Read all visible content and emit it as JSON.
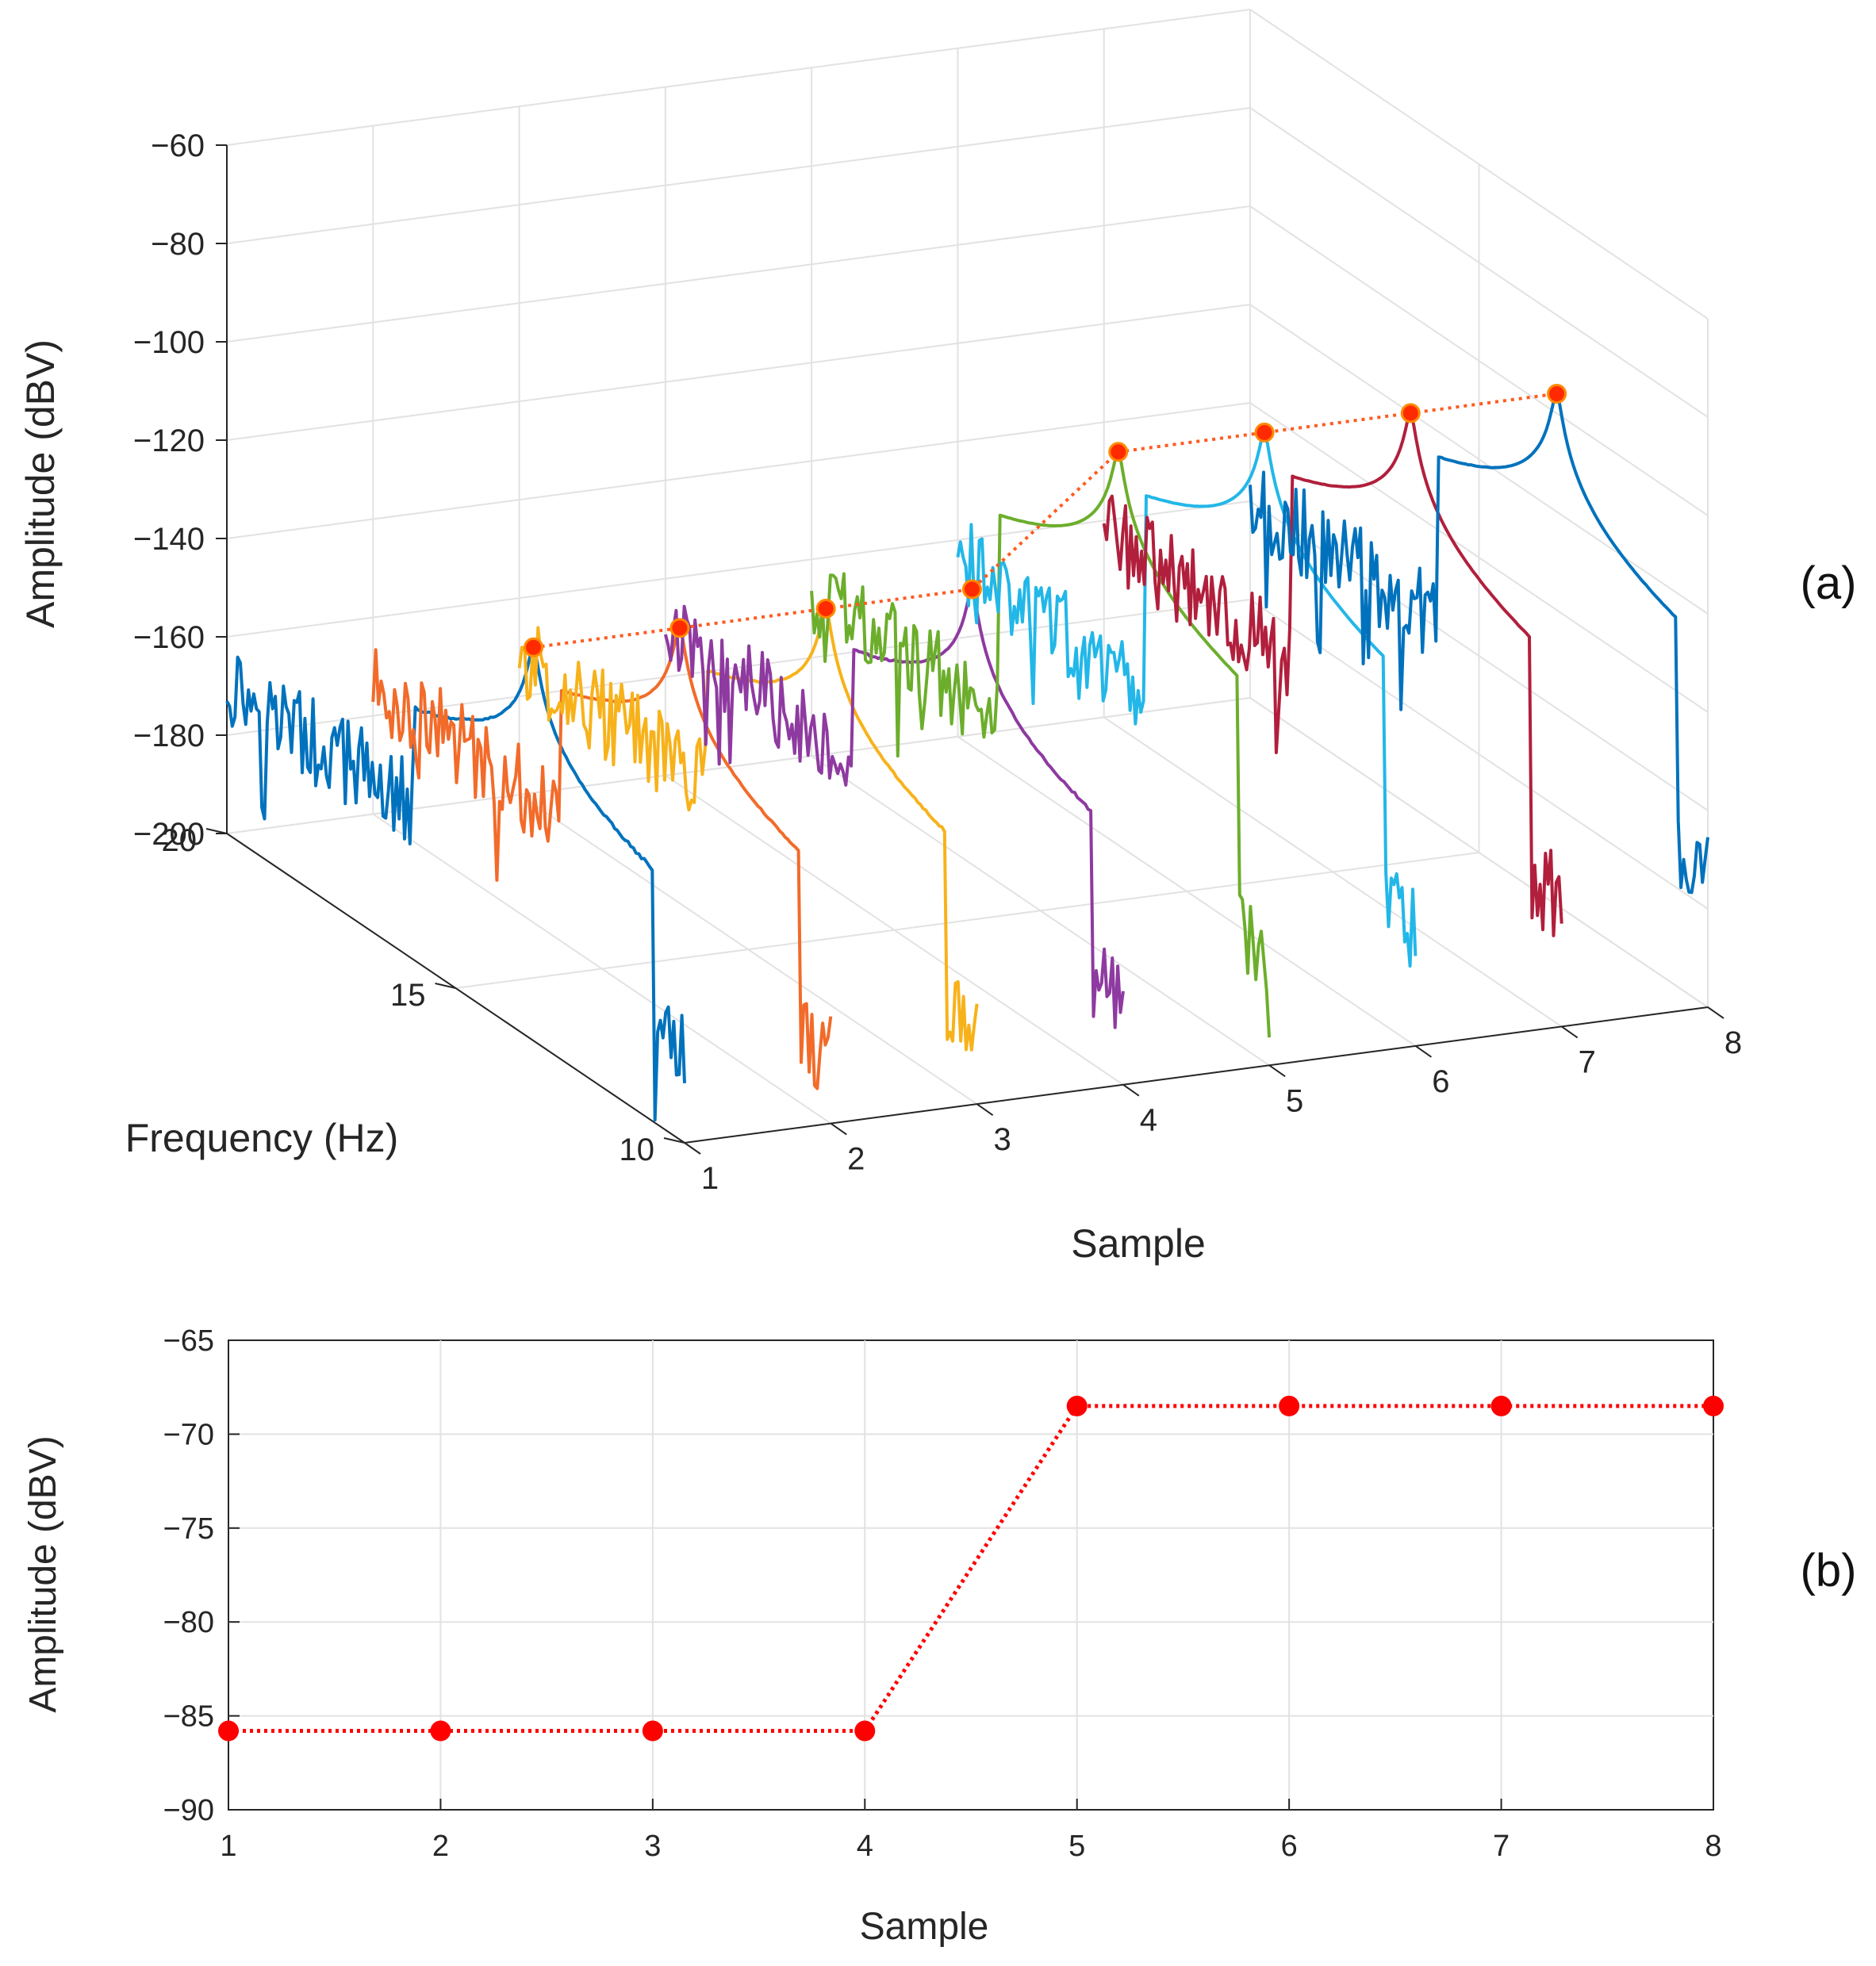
{
  "chart_data": [
    {
      "panel": "a",
      "type": "line",
      "panel_label": "(a)",
      "title": "",
      "xlabel": "Sample",
      "ylabel": "Frequency (Hz)",
      "zlabel": "Amplitude (dBV)",
      "x_ticks": [
        1,
        2,
        3,
        4,
        5,
        6,
        7,
        8
      ],
      "x_tick_labels": [
        "1",
        "2",
        "3",
        "4",
        "5",
        "6",
        "7",
        "8"
      ],
      "y_ticks": [
        10,
        15,
        20
      ],
      "y_tick_labels": [
        "10",
        "15",
        "20"
      ],
      "z_ticks": [
        -200,
        -180,
        -160,
        -140,
        -120,
        -100,
        -80,
        -60
      ],
      "z_tick_labels": [
        "−200",
        "−180",
        "−160",
        "−140",
        "−120",
        "−100",
        "−80",
        "−60"
      ],
      "xlim": [
        1,
        8
      ],
      "ylim": [
        10,
        20
      ],
      "zlim": [
        -200,
        -60
      ],
      "grid": true,
      "peak_frequency_hz": 13.3,
      "series": [
        {
          "name": "Sample 1",
          "color": "#0072BD",
          "peak_dbv": -120,
          "noise_floor_dbv": -175
        },
        {
          "name": "Sample 2",
          "color": "#F26B2A",
          "peak_dbv": -120,
          "noise_floor_dbv": -180
        },
        {
          "name": "Sample 3",
          "color": "#F7B21B",
          "peak_dbv": -120,
          "noise_floor_dbv": -178
        },
        {
          "name": "Sample 4",
          "color": "#8E3AA0",
          "peak_dbv": -120,
          "noise_floor_dbv": -176
        },
        {
          "name": "Sample 5",
          "color": "#6CAE2C",
          "peak_dbv": -96,
          "noise_floor_dbv": -172
        },
        {
          "name": "Sample 6",
          "color": "#22B7E8",
          "peak_dbv": -96,
          "noise_floor_dbv": -170
        },
        {
          "name": "Sample 7",
          "color": "#B11F3C",
          "peak_dbv": -96,
          "noise_floor_dbv": -168
        },
        {
          "name": "Sample 8",
          "color": "#0072BD",
          "peak_dbv": -96,
          "noise_floor_dbv": -165
        }
      ],
      "peak_trace": {
        "color": "#FF5A1F",
        "marker_color": "#FF2A00",
        "style": "dotted",
        "values_dbv": [
          -120,
          -120,
          -120,
          -120,
          -96,
          -96,
          -96,
          -96
        ]
      }
    },
    {
      "panel": "b",
      "type": "line",
      "panel_label": "(b)",
      "title": "",
      "xlabel": "Sample",
      "ylabel": "Amplitude (dBV)",
      "x": [
        1,
        2,
        3,
        4,
        5,
        6,
        7,
        8
      ],
      "x_tick_labels": [
        "1",
        "2",
        "3",
        "4",
        "5",
        "6",
        "7",
        "8"
      ],
      "y_ticks": [
        -90,
        -85,
        -80,
        -75,
        -70,
        -65
      ],
      "y_tick_labels": [
        "−90",
        "−85",
        "−80",
        "−75",
        "−70",
        "−65"
      ],
      "xlim": [
        1,
        8
      ],
      "ylim": [
        -90,
        -65
      ],
      "grid": true,
      "series": [
        {
          "name": "Amplitude",
          "color": "#FF0000",
          "style": "dotted",
          "marker": "circle",
          "values": [
            -85.8,
            -85.8,
            -85.8,
            -85.8,
            -68.5,
            -68.5,
            -68.5,
            -68.5
          ]
        }
      ]
    }
  ]
}
